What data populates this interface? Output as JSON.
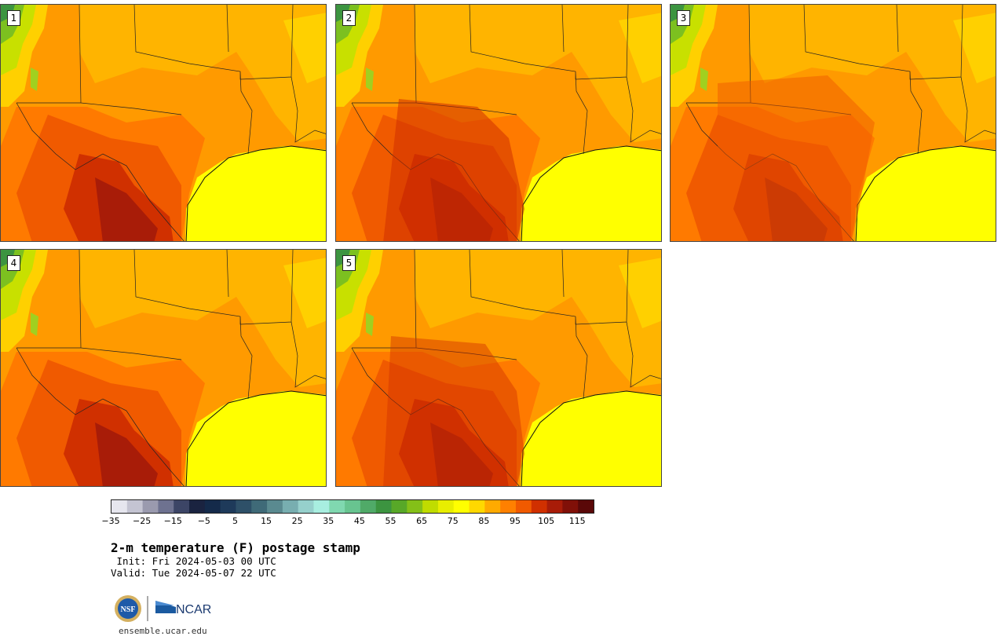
{
  "stamps": [
    "1",
    "2",
    "3",
    "4",
    "5"
  ],
  "colorbar": {
    "ticks": [
      "−35",
      "−25",
      "−15",
      "−5",
      "5",
      "15",
      "25",
      "35",
      "45",
      "55",
      "65",
      "75",
      "85",
      "95",
      "105",
      "115"
    ],
    "colors": [
      "#e6e6ee",
      "#c4c4d2",
      "#9a9aae",
      "#6e7290",
      "#3c4566",
      "#1a2340",
      "#142a4a",
      "#1e3a5a",
      "#2e5068",
      "#3f6a78",
      "#5a8a90",
      "#78aeb0",
      "#96d0cc",
      "#a8eee0",
      "#80d8b0",
      "#68c490",
      "#50aa68",
      "#3c9440",
      "#58a828",
      "#84c018",
      "#c0dc00",
      "#e8ee00",
      "#ffff00",
      "#ffd800",
      "#ffaa00",
      "#ff8000",
      "#f05a00",
      "#d03000",
      "#a81c08",
      "#801008",
      "#5a0808"
    ]
  },
  "title": "2-m temperature (F) postage stamp",
  "init_line": " Init: Fri 2024-05-03 00 UTC",
  "valid_line": "Valid: Tue 2024-05-07 22 UTC",
  "logos": {
    "nsf_text": "NSF",
    "ncar_text": "NCAR"
  },
  "site": "ensemble.ucar.edu"
}
